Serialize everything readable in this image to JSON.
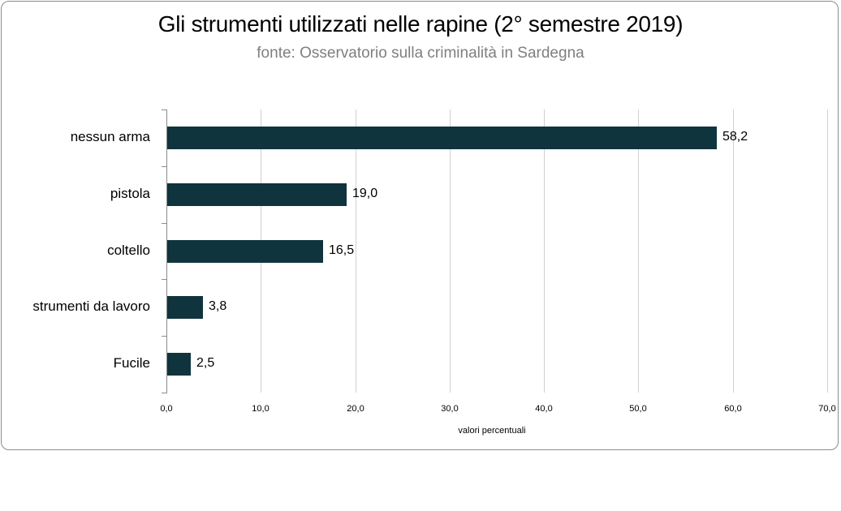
{
  "chart_data": {
    "type": "bar",
    "orientation": "horizontal",
    "title": "Gli  strumenti utilizzati nelle rapine (2° semestre 2019)",
    "subtitle": "fonte: Osservatorio sulla criminalità in Sardegna",
    "categories": [
      "nessun arma",
      "pistola",
      "coltello",
      "strumenti da lavoro",
      "Fucile"
    ],
    "values": [
      58.2,
      19.0,
      16.5,
      3.8,
      2.5
    ],
    "value_labels": [
      "58,2",
      "19,0",
      "16,5",
      "3,8",
      "2,5"
    ],
    "xlabel": "valori percentuali",
    "ylabel": "",
    "xlim": [
      0,
      70
    ],
    "x_ticks": [
      "0,0",
      "10,0",
      "20,0",
      "30,0",
      "40,0",
      "50,0",
      "60,0",
      "70,0"
    ],
    "grid": "vertical",
    "legend": "none",
    "bar_color": "#0f343d"
  },
  "title": "Gli  strumenti utilizzati nelle rapine (2° semestre 2019)",
  "subtitle": "fonte: Osservatorio sulla criminalità in Sardegna",
  "xlabel": "valori percentuali"
}
